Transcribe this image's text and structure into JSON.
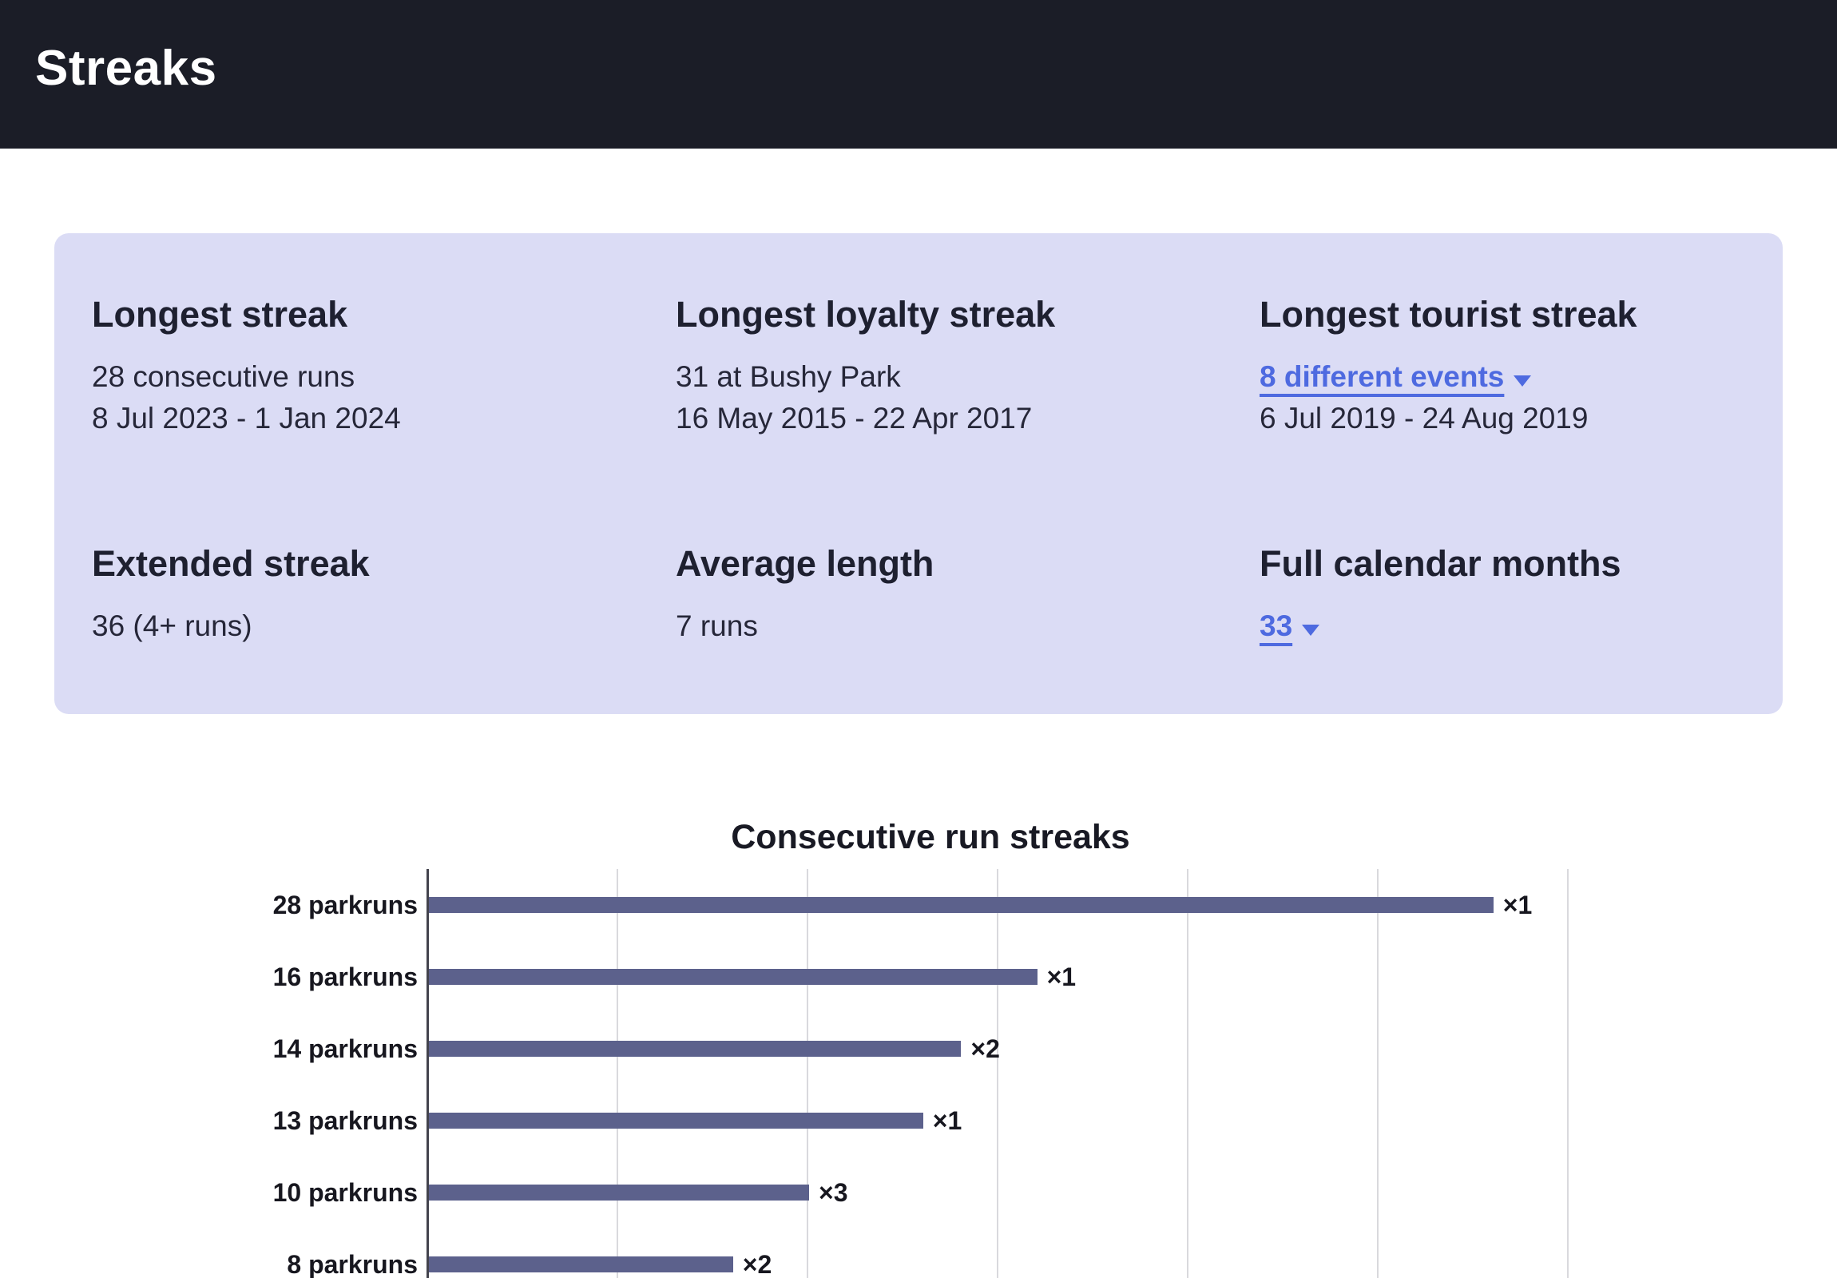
{
  "header": {
    "title": "Streaks"
  },
  "stats": [
    {
      "title": "Longest streak",
      "lines": [
        "28 consecutive runs",
        "8 Jul 2023 - 1 Jan 2024"
      ]
    },
    {
      "title": "Longest loyalty streak",
      "lines": [
        "31 at Bushy Park",
        "16 May 2015 - 22 Apr 2017"
      ]
    },
    {
      "title": "Longest tourist streak",
      "link": "8 different events",
      "lines": [
        "6 Jul 2019 - 24 Aug 2019"
      ]
    },
    {
      "title": "Extended streak",
      "lines": [
        "36 (4+ runs)"
      ]
    },
    {
      "title": "Average length",
      "lines": [
        "7 runs"
      ]
    },
    {
      "title": "Full calendar months",
      "link": "33",
      "lines": []
    }
  ],
  "chart_data": {
    "type": "bar",
    "orientation": "horizontal",
    "title": "Consecutive run streaks",
    "categories": [
      "28 parkruns",
      "16 parkruns",
      "14 parkruns",
      "13 parkruns",
      "10 parkruns",
      "8 parkruns"
    ],
    "values": [
      28,
      16,
      14,
      13,
      10,
      8
    ],
    "count_labels": [
      "×1",
      "×1",
      "×2",
      "×1",
      "×3",
      "×2"
    ],
    "xlim": [
      0,
      30
    ],
    "grid_step": 5,
    "bar_color": "#5c618c",
    "legend": "none",
    "grid": "vertical"
  },
  "colors": {
    "header_bg": "#1b1d27",
    "card_bg": "#dbdcf5",
    "link": "#4e6ae0",
    "bar": "#5c618c"
  }
}
